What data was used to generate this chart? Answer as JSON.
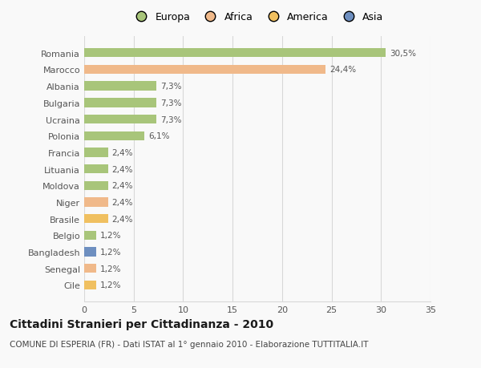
{
  "categories": [
    "Romania",
    "Marocco",
    "Albania",
    "Bulgaria",
    "Ucraina",
    "Polonia",
    "Francia",
    "Lituania",
    "Moldova",
    "Niger",
    "Brasile",
    "Belgio",
    "Bangladesh",
    "Senegal",
    "Cile"
  ],
  "values": [
    30.5,
    24.4,
    7.3,
    7.3,
    7.3,
    6.1,
    2.4,
    2.4,
    2.4,
    2.4,
    2.4,
    1.2,
    1.2,
    1.2,
    1.2
  ],
  "bar_colors": [
    "#a8c57a",
    "#f0b98a",
    "#a8c57a",
    "#a8c57a",
    "#a8c57a",
    "#a8c57a",
    "#a8c57a",
    "#a8c57a",
    "#a8c57a",
    "#f0b98a",
    "#f0c060",
    "#a8c57a",
    "#6e8fc0",
    "#f0b98a",
    "#f0c060"
  ],
  "labels": [
    "30,5%",
    "24,4%",
    "7,3%",
    "7,3%",
    "7,3%",
    "6,1%",
    "2,4%",
    "2,4%",
    "2,4%",
    "2,4%",
    "2,4%",
    "1,2%",
    "1,2%",
    "1,2%",
    "1,2%"
  ],
  "legend_labels": [
    "Europa",
    "Africa",
    "America",
    "Asia"
  ],
  "legend_colors": [
    "#a8c57a",
    "#f0b98a",
    "#f0c060",
    "#6e8fc0"
  ],
  "xlim": [
    0,
    35
  ],
  "xticks": [
    0,
    5,
    10,
    15,
    20,
    25,
    30,
    35
  ],
  "title": "Cittadini Stranieri per Cittadinanza - 2010",
  "subtitle": "COMUNE DI ESPERIA (FR) - Dati ISTAT al 1° gennaio 2010 - Elaborazione TUTTITALIA.IT",
  "background_color": "#f9f9f9",
  "grid_color": "#d8d8d8",
  "bar_height": 0.55,
  "title_fontsize": 10,
  "subtitle_fontsize": 7.5,
  "label_fontsize": 7.5,
  "tick_fontsize": 8,
  "legend_fontsize": 9
}
